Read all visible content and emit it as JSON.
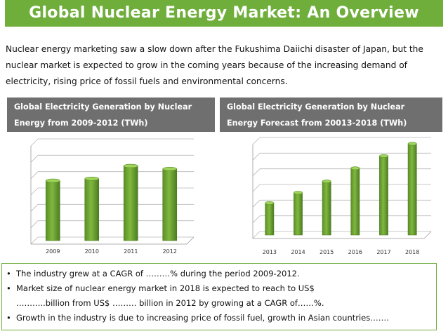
{
  "title": "Global Nuclear Energy Market: An Overview",
  "intro": [
    "Nuclear energy marketing saw a slow down after the Fukushima Daiichi disaster of Japan, but the",
    "nuclear market is expected to grow in the coming years because of the increasing demand of",
    "electricity, rising price of fossil fuels and environmental concerns."
  ],
  "left_panel": {
    "title_line1": "Global Electricity Generation by Nuclear",
    "title_line2": "Energy from 2009-2012 (TWh)"
  },
  "right_panel": {
    "title_line1": "Global Electricity Generation by Nuclear",
    "title_line2": "Energy Forecast from 20013-2018 (TWh)"
  },
  "bullets": {
    "b1": "The industry grew at a CAGR of ………% during the period 2009-2012.",
    "b2_line1": "Market size of nuclear energy market in 2018 is expected to reach to US$",
    "b2_line2": "………..billion from US$ ……… billion in 2012 by growing at a CAGR of……%.",
    "b3": "Growth in the industry is due to increasing price of fossil fuel, growth in Asian countries……."
  },
  "chart_data": [
    {
      "type": "bar",
      "title": "Global Electricity Generation by Nuclear Energy from 2009-2012 (TWh)",
      "categories": [
        "2009",
        "2010",
        "2011",
        "2012"
      ],
      "values": [
        61,
        63,
        76,
        73
      ],
      "ylim": [
        0,
        100
      ],
      "grid": true,
      "bar_color": "#7fb83f"
    },
    {
      "type": "bar",
      "title": "Global Electricity Generation by Nuclear Energy Forecast from 20013-2018 (TWh)",
      "categories": [
        "2013",
        "2014",
        "2015",
        "2016",
        "2017",
        "2018"
      ],
      "values": [
        34,
        45,
        57,
        71,
        84,
        97
      ],
      "ylim": [
        0,
        100
      ],
      "grid": true,
      "bar_color": "#7fb83f"
    }
  ]
}
